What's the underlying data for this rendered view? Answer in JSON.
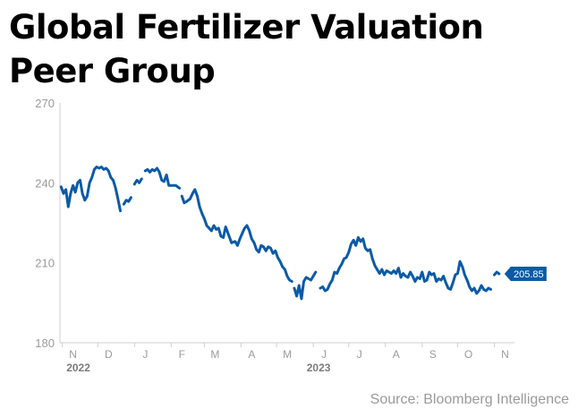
{
  "title_lines": [
    "Global Fertilizer Valuation",
    "Peer Group"
  ],
  "source": "Source: Bloomberg Intelligence",
  "colors": {
    "line": "#0b5aa7",
    "axis": "#cfcfcf",
    "tick_text": "#9a9a9a",
    "year_text": "#7a7a7a",
    "badge_bg": "#0b5aa7",
    "badge_text": "#ffffff"
  },
  "chart_data": {
    "type": "line",
    "title": "Global Fertilizer Valuation Peer Group",
    "xlabel": "",
    "ylabel": "",
    "ylim": [
      180,
      270
    ],
    "yticks": [
      180,
      210,
      240,
      270
    ],
    "xlim": [
      "2022-10-30",
      "2023-11-18"
    ],
    "month_ticks": [
      {
        "label": "N",
        "date": "2022-11-01"
      },
      {
        "label": "D",
        "date": "2022-12-01"
      },
      {
        "label": "J",
        "date": "2023-01-01"
      },
      {
        "label": "F",
        "date": "2023-02-01"
      },
      {
        "label": "M",
        "date": "2023-03-01"
      },
      {
        "label": "A",
        "date": "2023-04-01"
      },
      {
        "label": "M",
        "date": "2023-05-01"
      },
      {
        "label": "J",
        "date": "2023-06-01"
      },
      {
        "label": "J",
        "date": "2023-07-01"
      },
      {
        "label": "A",
        "date": "2023-08-01"
      },
      {
        "label": "S",
        "date": "2023-09-01"
      },
      {
        "label": "O",
        "date": "2023-10-01"
      },
      {
        "label": "N",
        "date": "2023-11-01"
      }
    ],
    "year_labels": [
      {
        "label": "2022",
        "date": "2022-11-10"
      },
      {
        "label": "2023",
        "date": "2023-06-01"
      }
    ],
    "last_value_label": "205.85",
    "grid": false,
    "legend": "none",
    "series": [
      {
        "segments": [
          [
            [
              "2022-10-31",
              238.5
            ],
            [
              "2022-11-02",
              236.0
            ],
            [
              "2022-11-04",
              237.5
            ],
            [
              "2022-11-06",
              231.0
            ],
            [
              "2022-11-08",
              236.0
            ],
            [
              "2022-11-10",
              239.0
            ],
            [
              "2022-11-12",
              236.5
            ],
            [
              "2022-11-14",
              240.0
            ],
            [
              "2022-11-16",
              241.0
            ],
            [
              "2022-11-18",
              236.0
            ],
            [
              "2022-11-20",
              233.5
            ],
            [
              "2022-11-22",
              235.0
            ],
            [
              "2022-11-24",
              240.0
            ],
            [
              "2022-11-26",
              242.0
            ],
            [
              "2022-11-28",
              245.0
            ],
            [
              "2022-11-30",
              246.0
            ],
            [
              "2022-12-02",
              245.5
            ],
            [
              "2022-12-04",
              246.0
            ],
            [
              "2022-12-06",
              245.0
            ],
            [
              "2022-12-08",
              245.5
            ],
            [
              "2022-12-10",
              244.5
            ],
            [
              "2022-12-12",
              242.0
            ],
            [
              "2022-12-14",
              241.0
            ],
            [
              "2022-12-16",
              238.0
            ],
            [
              "2022-12-18",
              234.0
            ],
            [
              "2022-12-20",
              229.5
            ]
          ],
          [
            [
              "2022-12-23",
              232.0
            ],
            [
              "2022-12-25",
              233.5
            ],
            [
              "2022-12-27",
              233.0
            ],
            [
              "2022-12-29",
              234.5
            ]
          ],
          [
            [
              "2023-01-01",
              239.5
            ],
            [
              "2023-01-03",
              241.0
            ],
            [
              "2023-01-05",
              240.0
            ],
            [
              "2023-01-07",
              241.5
            ]
          ],
          [
            [
              "2023-01-10",
              244.5
            ],
            [
              "2023-01-12",
              245.0
            ],
            [
              "2023-01-14",
              244.0
            ],
            [
              "2023-01-16",
              245.0
            ],
            [
              "2023-01-18",
              244.5
            ],
            [
              "2023-01-20",
              245.5
            ],
            [
              "2023-01-22",
              244.0
            ],
            [
              "2023-01-24",
              241.0
            ],
            [
              "2023-01-26",
              240.5
            ],
            [
              "2023-01-28",
              243.0
            ],
            [
              "2023-01-30",
              239.0
            ],
            [
              "2023-02-02",
              239.0
            ],
            [
              "2023-02-05",
              239.0
            ],
            [
              "2023-02-08",
              238.0
            ]
          ],
          [
            [
              "2023-02-10",
              235.0
            ],
            [
              "2023-02-12",
              232.5
            ],
            [
              "2023-02-14",
              233.0
            ],
            [
              "2023-02-17",
              234.0
            ],
            [
              "2023-02-19",
              236.0
            ],
            [
              "2023-02-21",
              237.5
            ],
            [
              "2023-02-23",
              235.0
            ],
            [
              "2023-02-25",
              231.0
            ],
            [
              "2023-02-27",
              228.5
            ],
            [
              "2023-03-01",
              226.5
            ],
            [
              "2023-03-03",
              224.0
            ],
            [
              "2023-03-05",
              223.0
            ],
            [
              "2023-03-07",
              222.0
            ],
            [
              "2023-03-09",
              224.0
            ],
            [
              "2023-03-11",
              222.5
            ],
            [
              "2023-03-13",
              223.0
            ],
            [
              "2023-03-15",
              220.0
            ],
            [
              "2023-03-17",
              219.5
            ],
            [
              "2023-03-19",
              223.5
            ],
            [
              "2023-03-21",
              221.0
            ],
            [
              "2023-03-24",
              217.5
            ],
            [
              "2023-03-27",
              218.0
            ],
            [
              "2023-03-29",
              216.5
            ],
            [
              "2023-03-31",
              219.0
            ],
            [
              "2023-04-02",
              221.0
            ],
            [
              "2023-04-04",
              223.0
            ],
            [
              "2023-04-06",
              224.0
            ],
            [
              "2023-04-08",
              222.0
            ],
            [
              "2023-04-10",
              219.0
            ],
            [
              "2023-04-12",
              217.5
            ],
            [
              "2023-04-14",
              215.0
            ],
            [
              "2023-04-16",
              214.0
            ],
            [
              "2023-04-18",
              216.5
            ],
            [
              "2023-04-20",
              216.0
            ],
            [
              "2023-04-22",
              214.5
            ],
            [
              "2023-04-24",
              216.0
            ],
            [
              "2023-04-26",
              215.5
            ],
            [
              "2023-04-28",
              213.5
            ],
            [
              "2023-04-30",
              214.5
            ],
            [
              "2023-05-02",
              212.0
            ],
            [
              "2023-05-04",
              210.5
            ],
            [
              "2023-05-06",
              208.5
            ],
            [
              "2023-05-08",
              207.5
            ],
            [
              "2023-05-10",
              205.0
            ],
            [
              "2023-05-12",
              203.5
            ],
            [
              "2023-05-14",
              203.0
            ]
          ],
          [
            [
              "2023-05-16",
              200.5
            ],
            [
              "2023-05-18",
              197.5
            ],
            [
              "2023-05-20",
              201.5
            ],
            [
              "2023-05-22",
              196.5
            ],
            [
              "2023-05-24",
              203.0
            ],
            [
              "2023-05-26",
              204.5
            ],
            [
              "2023-05-28",
              204.0
            ],
            [
              "2023-05-30",
              203.5
            ],
            [
              "2023-06-01",
              205.0
            ],
            [
              "2023-06-03",
              206.5
            ]
          ],
          [
            [
              "2023-06-07",
              200.5
            ],
            [
              "2023-06-09",
              201.0
            ],
            [
              "2023-06-11",
              199.5
            ],
            [
              "2023-06-13",
              200.0
            ],
            [
              "2023-06-15",
              202.0
            ],
            [
              "2023-06-17",
              203.5
            ],
            [
              "2023-06-19",
              206.5
            ],
            [
              "2023-06-21",
              206.0
            ],
            [
              "2023-06-23",
              208.0
            ],
            [
              "2023-06-25",
              209.5
            ],
            [
              "2023-06-27",
              211.5
            ],
            [
              "2023-06-29",
              212.0
            ],
            [
              "2023-07-01",
              214.0
            ],
            [
              "2023-07-03",
              217.0
            ],
            [
              "2023-07-05",
              218.5
            ],
            [
              "2023-07-07",
              216.5
            ],
            [
              "2023-07-09",
              219.5
            ],
            [
              "2023-07-11",
              218.0
            ],
            [
              "2023-07-13",
              219.0
            ],
            [
              "2023-07-15",
              215.5
            ],
            [
              "2023-07-17",
              214.5
            ],
            [
              "2023-07-19",
              215.0
            ],
            [
              "2023-07-21",
              211.5
            ],
            [
              "2023-07-23",
              209.0
            ],
            [
              "2023-07-25",
              207.5
            ],
            [
              "2023-07-27",
              206.0
            ],
            [
              "2023-07-29",
              207.5
            ],
            [
              "2023-07-31",
              205.5
            ],
            [
              "2023-08-02",
              207.0
            ],
            [
              "2023-08-04",
              206.5
            ],
            [
              "2023-08-06",
              206.0
            ],
            [
              "2023-08-08",
              207.0
            ],
            [
              "2023-08-10",
              206.0
            ],
            [
              "2023-08-12",
              208.0
            ],
            [
              "2023-08-14",
              204.5
            ],
            [
              "2023-08-16",
              206.0
            ],
            [
              "2023-08-18",
              205.0
            ],
            [
              "2023-08-20",
              204.5
            ],
            [
              "2023-08-22",
              206.5
            ],
            [
              "2023-08-24",
              205.0
            ],
            [
              "2023-08-26",
              203.0
            ],
            [
              "2023-08-28",
              204.5
            ],
            [
              "2023-08-30",
              204.0
            ],
            [
              "2023-09-01",
              206.5
            ],
            [
              "2023-09-03",
              203.0
            ],
            [
              "2023-09-05",
              203.5
            ],
            [
              "2023-09-07",
              206.5
            ],
            [
              "2023-09-09",
              205.5
            ],
            [
              "2023-09-11",
              206.0
            ],
            [
              "2023-09-13",
              203.0
            ],
            [
              "2023-09-15",
              204.0
            ],
            [
              "2023-09-17",
              203.5
            ],
            [
              "2023-09-19",
              205.0
            ],
            [
              "2023-09-21",
              202.5
            ],
            [
              "2023-09-23",
              200.5
            ],
            [
              "2023-09-25",
              200.0
            ],
            [
              "2023-09-27",
              202.5
            ],
            [
              "2023-09-29",
              205.5
            ],
            [
              "2023-10-01",
              206.0
            ],
            [
              "2023-10-03",
              210.5
            ],
            [
              "2023-10-05",
              208.5
            ],
            [
              "2023-10-07",
              205.5
            ],
            [
              "2023-10-09",
              203.5
            ],
            [
              "2023-10-11",
              201.0
            ],
            [
              "2023-10-13",
              199.5
            ],
            [
              "2023-10-15",
              200.5
            ],
            [
              "2023-10-17",
              198.5
            ],
            [
              "2023-10-19",
              199.5
            ],
            [
              "2023-10-21",
              201.5
            ],
            [
              "2023-10-23",
              200.0
            ],
            [
              "2023-10-25",
              199.5
            ],
            [
              "2023-10-27",
              200.5
            ],
            [
              "2023-10-29",
              200.0
            ]
          ],
          [
            [
              "2023-11-01",
              205.5
            ],
            [
              "2023-11-03",
              206.5
            ],
            [
              "2023-11-05",
              205.85
            ]
          ]
        ]
      }
    ]
  }
}
